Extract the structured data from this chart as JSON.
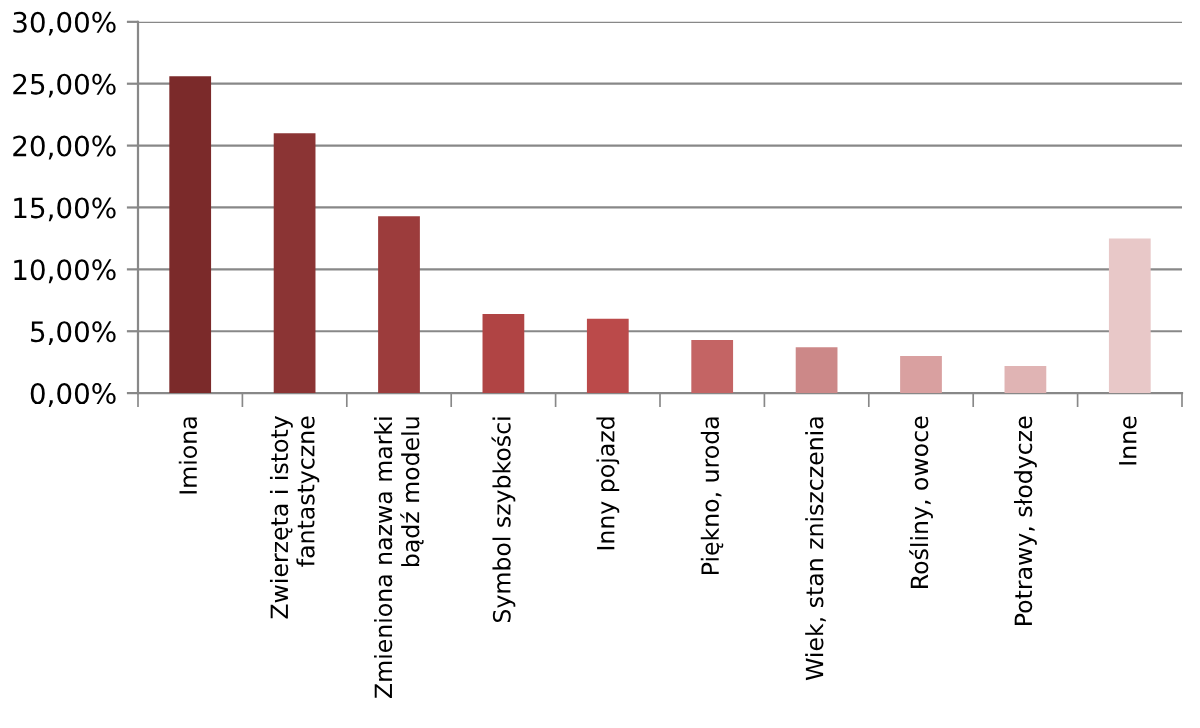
{
  "chart_data": {
    "type": "bar",
    "categories": [
      "Imiona",
      "Zwierzęta i istoty\nfantastyczne",
      "Zmieniona nazwa marki\nbądź modelu",
      "Symbol szybkości",
      "Inny pojazd",
      "Piękno, uroda",
      "Wiek, stan zniszczenia",
      "Rośliny, owoce",
      "Potrawy, słodycze",
      "Inne"
    ],
    "values": [
      25.6,
      21.0,
      14.3,
      6.4,
      6.0,
      4.3,
      3.7,
      3.0,
      2.2,
      12.5
    ],
    "colors": [
      "#7b2a2a",
      "#8b3434",
      "#9c3c3c",
      "#b04444",
      "#bb4a4a",
      "#c46464",
      "#cc8888",
      "#d9a0a0",
      "#e0b4b4",
      "#e8c8c8"
    ],
    "ylim": [
      0,
      30
    ],
    "yticks": [
      {
        "value": 0,
        "label": "0,00%"
      },
      {
        "value": 5,
        "label": "5,00%"
      },
      {
        "value": 10,
        "label": "10,00%"
      },
      {
        "value": 15,
        "label": "15,00%"
      },
      {
        "value": 20,
        "label": "20,00%"
      },
      {
        "value": 25,
        "label": "25,00%"
      },
      {
        "value": 30,
        "label": "30,00%"
      }
    ],
    "grid": "y",
    "legend": false
  }
}
